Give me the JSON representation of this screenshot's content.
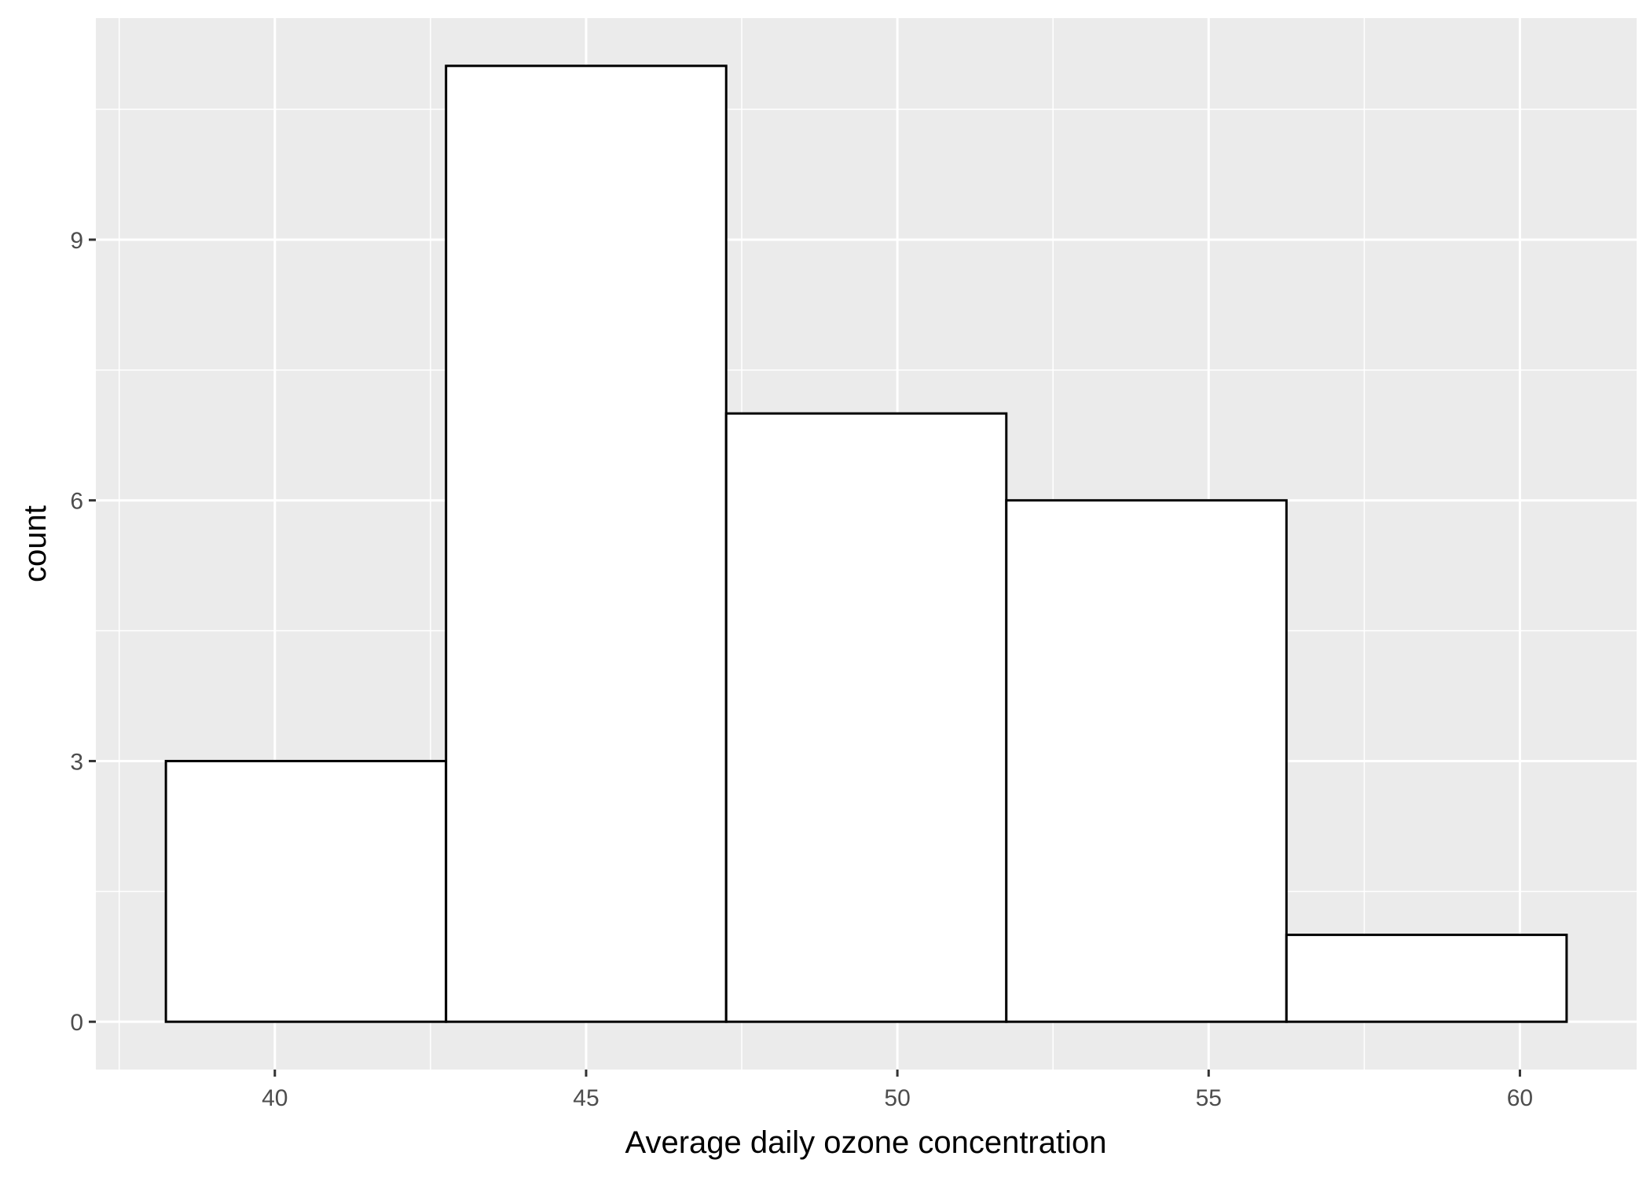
{
  "chart_data": {
    "type": "bar",
    "subtype": "histogram",
    "title": "",
    "xlabel": "Average daily ozone concentration",
    "ylabel": "count",
    "bins": [
      {
        "start": 38.25,
        "end": 42.75,
        "count": 3
      },
      {
        "start": 42.75,
        "end": 47.25,
        "count": 11
      },
      {
        "start": 47.25,
        "end": 51.75,
        "count": 7
      },
      {
        "start": 51.75,
        "end": 56.25,
        "count": 6
      },
      {
        "start": 56.25,
        "end": 60.75,
        "count": 1
      }
    ],
    "xlim": [
      37.125,
      61.875
    ],
    "ylim": [
      -0.55,
      11.55
    ],
    "x_ticks": [
      40,
      45,
      50,
      55,
      60
    ],
    "x_tick_labels": [
      "40",
      "45",
      "50",
      "55",
      "60"
    ],
    "y_ticks": [
      0,
      3,
      6,
      9
    ],
    "y_tick_labels": [
      "0",
      "3",
      "6",
      "9"
    ],
    "x_minor_ticks": [
      37.5,
      42.5,
      47.5,
      52.5,
      57.5
    ],
    "y_minor_ticks": [
      1.5,
      4.5,
      7.5,
      10.5
    ],
    "grid": true,
    "legend": "none",
    "colors": {
      "panel_background": "#EBEBEB",
      "grid": "#FFFFFF",
      "bar_fill": "#FFFFFF",
      "bar_outline": "#000000",
      "tick_label": "#4D4D4D",
      "axis_title": "#000000",
      "tick_mark": "#333333"
    }
  }
}
